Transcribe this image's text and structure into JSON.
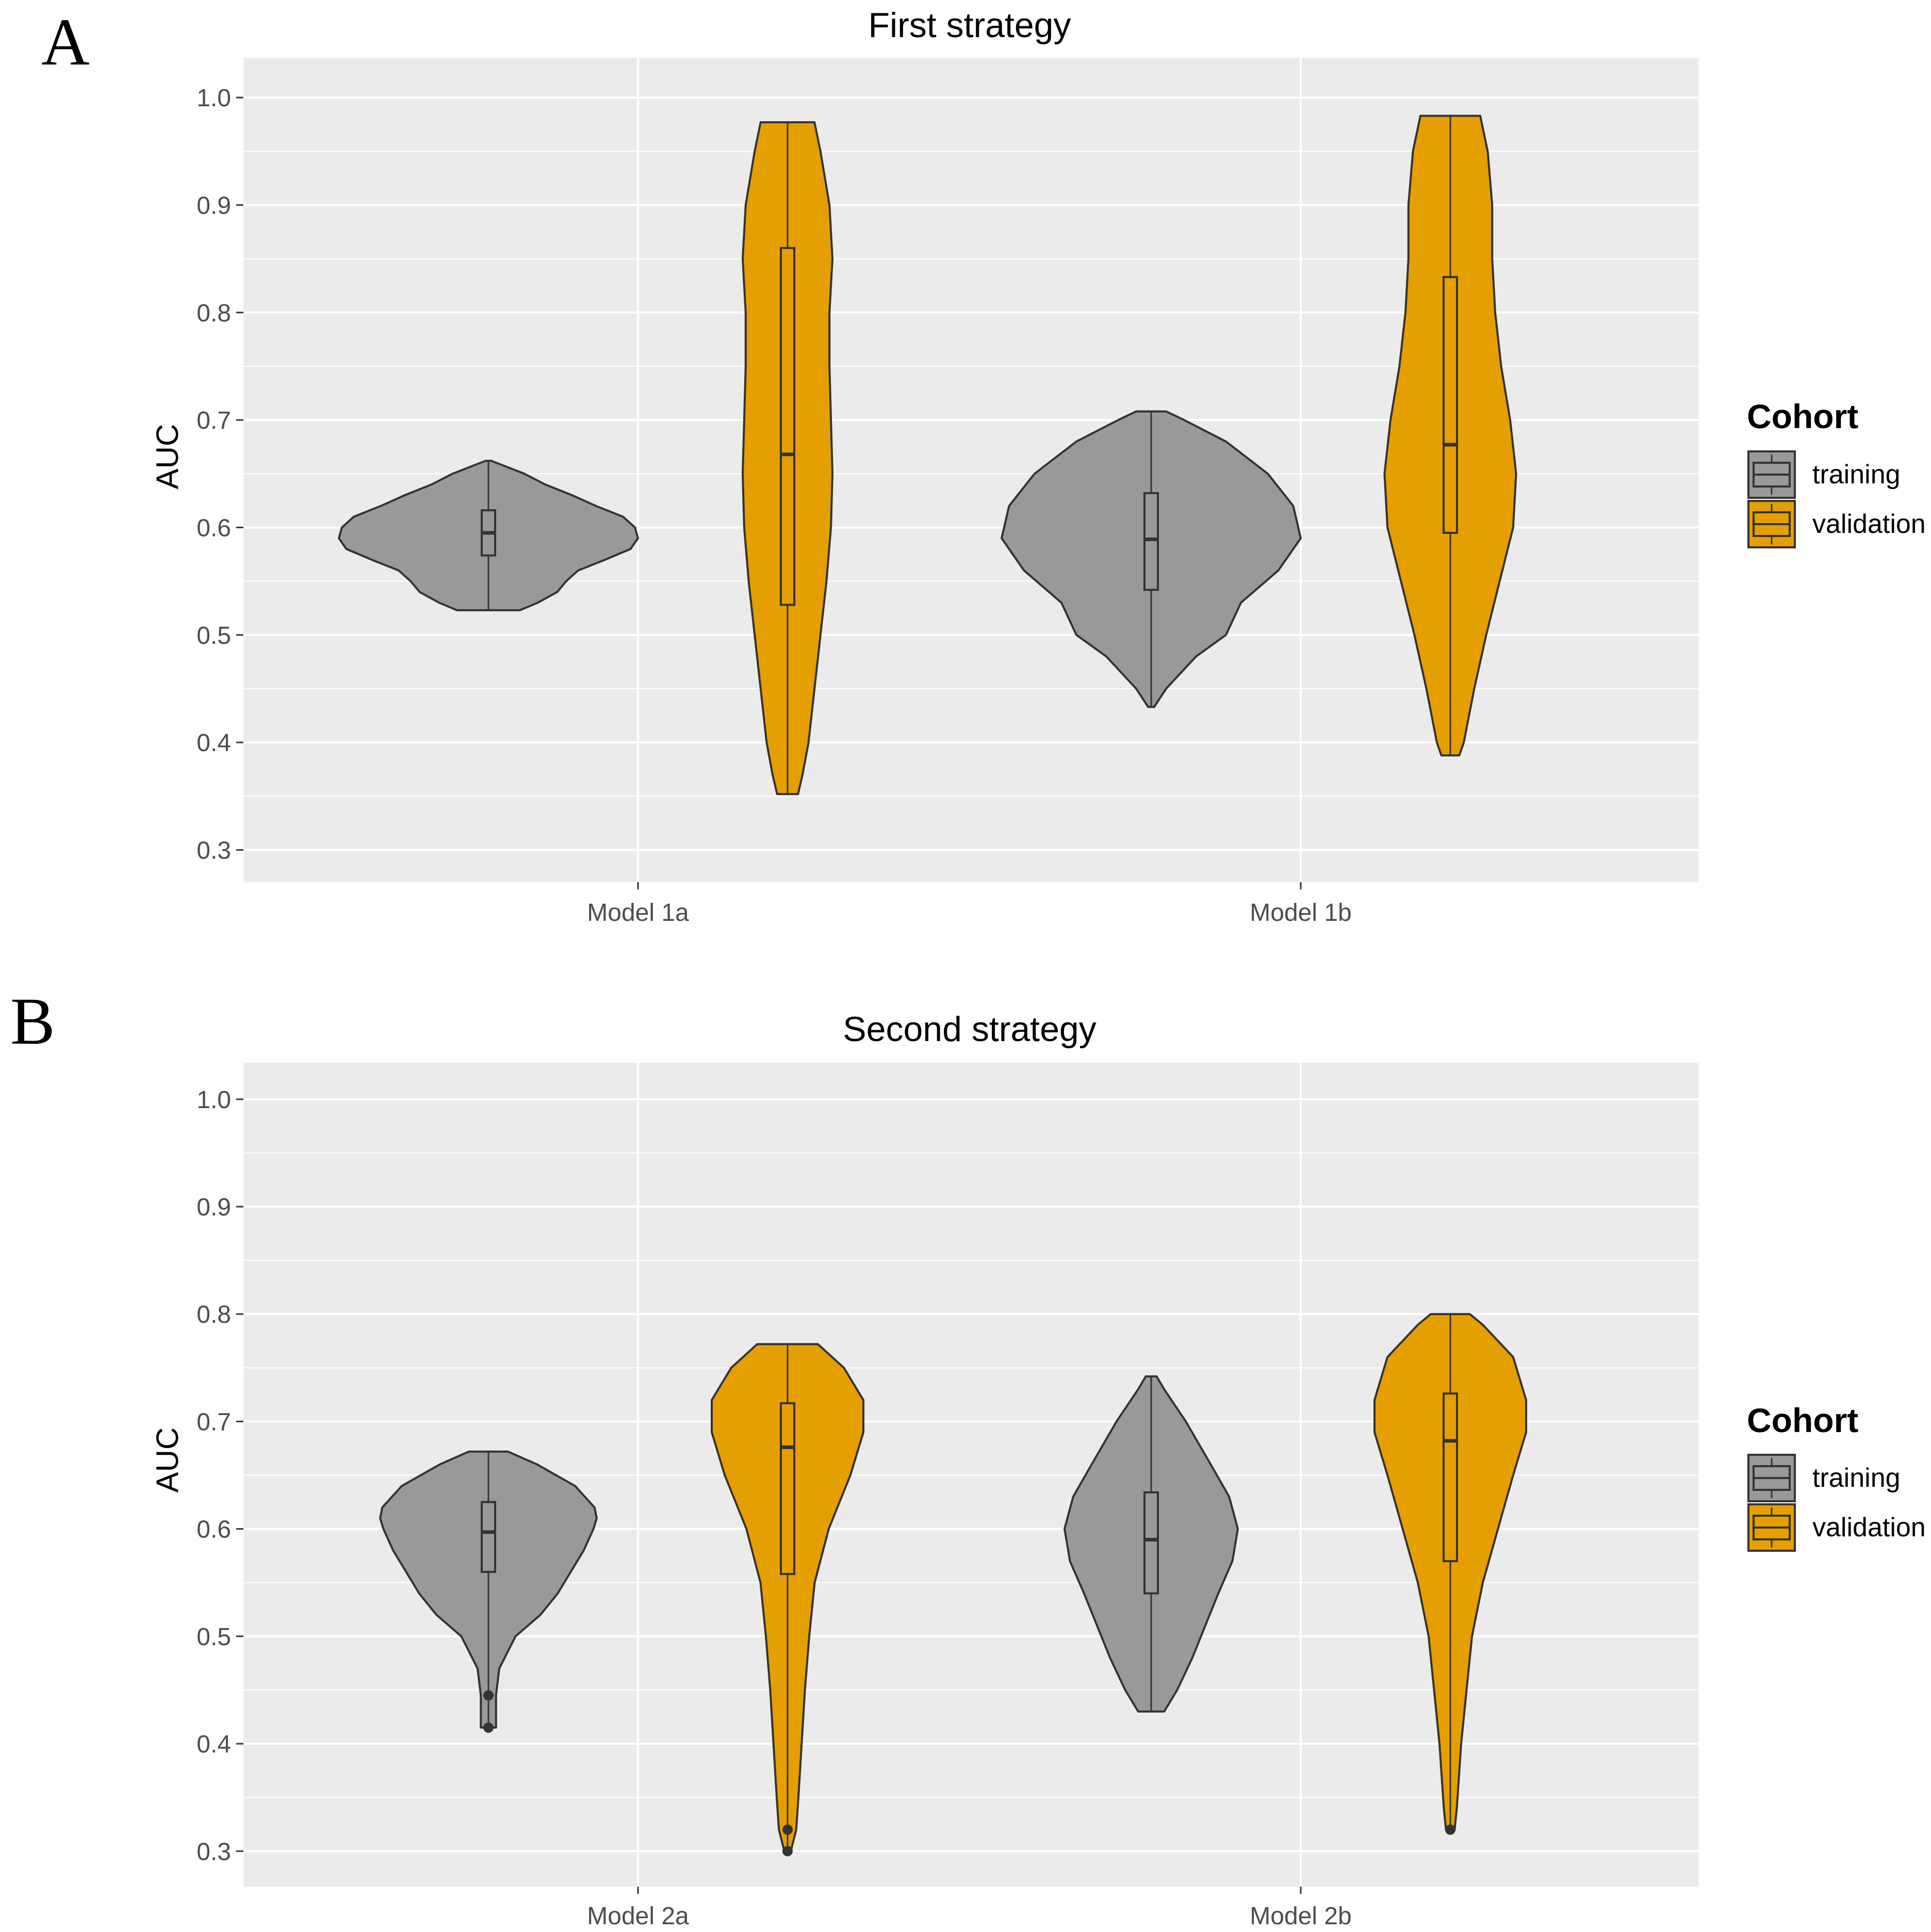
{
  "colors": {
    "training": "#999999",
    "validation": "#E69F00",
    "panel_bg": "#EBEBEB",
    "grid": "#FFFFFF",
    "outline": "#333333"
  },
  "chart_data": [
    {
      "panel_letter": "A",
      "type": "violin",
      "title": "First strategy",
      "ylabel": "AUC",
      "xlabel": "",
      "ylim": [
        0.27,
        1.037
      ],
      "yticks": [
        "0.3",
        "0.4",
        "0.5",
        "0.6",
        "0.7",
        "0.8",
        "0.9",
        "1.0"
      ],
      "categories": [
        "Model 1a",
        "Model 1b"
      ],
      "legend": {
        "title": "Cohort",
        "position": "right",
        "entries": [
          "training",
          "validation"
        ]
      },
      "series": [
        {
          "name": "training",
          "category": "Model 1a",
          "min": 0.523,
          "max": 0.662,
          "q1": 0.574,
          "median": 0.595,
          "q3": 0.616,
          "density": [
            [
              0.523,
              0.21
            ],
            [
              0.53,
              0.33
            ],
            [
              0.54,
              0.46
            ],
            [
              0.55,
              0.52
            ],
            [
              0.56,
              0.6
            ],
            [
              0.57,
              0.78
            ],
            [
              0.58,
              0.95
            ],
            [
              0.59,
              1.0
            ],
            [
              0.6,
              0.98
            ],
            [
              0.61,
              0.9
            ],
            [
              0.62,
              0.72
            ],
            [
              0.63,
              0.56
            ],
            [
              0.64,
              0.38
            ],
            [
              0.65,
              0.24
            ],
            [
              0.662,
              0.02
            ]
          ],
          "outliers": []
        },
        {
          "name": "validation",
          "category": "Model 1a",
          "min": 0.352,
          "max": 0.977,
          "q1": 0.528,
          "median": 0.668,
          "q3": 0.86,
          "density": [
            [
              0.352,
              0.07
            ],
            [
              0.37,
              0.1
            ],
            [
              0.4,
              0.14
            ],
            [
              0.45,
              0.18
            ],
            [
              0.5,
              0.22
            ],
            [
              0.55,
              0.26
            ],
            [
              0.6,
              0.29
            ],
            [
              0.65,
              0.3
            ],
            [
              0.7,
              0.29
            ],
            [
              0.75,
              0.28
            ],
            [
              0.8,
              0.28
            ],
            [
              0.85,
              0.3
            ],
            [
              0.9,
              0.28
            ],
            [
              0.95,
              0.22
            ],
            [
              0.977,
              0.18
            ]
          ],
          "outliers": []
        },
        {
          "name": "training",
          "category": "Model 1b",
          "min": 0.433,
          "max": 0.708,
          "q1": 0.542,
          "median": 0.589,
          "q3": 0.632,
          "density": [
            [
              0.433,
              0.02
            ],
            [
              0.45,
              0.1
            ],
            [
              0.48,
              0.3
            ],
            [
              0.5,
              0.5
            ],
            [
              0.53,
              0.6
            ],
            [
              0.56,
              0.85
            ],
            [
              0.59,
              1.0
            ],
            [
              0.62,
              0.95
            ],
            [
              0.65,
              0.78
            ],
            [
              0.68,
              0.5
            ],
            [
              0.7,
              0.22
            ],
            [
              0.708,
              0.1
            ]
          ],
          "outliers": []
        },
        {
          "name": "validation",
          "category": "Model 1b",
          "min": 0.388,
          "max": 0.983,
          "q1": 0.595,
          "median": 0.677,
          "q3": 0.833,
          "density": [
            [
              0.388,
              0.06
            ],
            [
              0.4,
              0.09
            ],
            [
              0.45,
              0.16
            ],
            [
              0.5,
              0.24
            ],
            [
              0.55,
              0.33
            ],
            [
              0.6,
              0.42
            ],
            [
              0.65,
              0.44
            ],
            [
              0.7,
              0.4
            ],
            [
              0.75,
              0.34
            ],
            [
              0.8,
              0.3
            ],
            [
              0.85,
              0.28
            ],
            [
              0.9,
              0.28
            ],
            [
              0.95,
              0.25
            ],
            [
              0.983,
              0.2
            ]
          ],
          "outliers": []
        }
      ]
    },
    {
      "panel_letter": "B",
      "type": "violin",
      "title": "Second strategy",
      "ylabel": "AUC",
      "xlabel": "",
      "ylim": [
        0.267,
        1.034
      ],
      "yticks": [
        "0.3",
        "0.4",
        "0.5",
        "0.6",
        "0.7",
        "0.8",
        "0.9",
        "1.0"
      ],
      "categories": [
        "Model 2a",
        "Model 2b"
      ],
      "legend": {
        "title": "Cohort",
        "position": "right",
        "entries": [
          "training",
          "validation"
        ]
      },
      "series": [
        {
          "name": "training",
          "category": "Model 2a",
          "min": 0.415,
          "max": 0.672,
          "q1": 0.56,
          "median": 0.597,
          "q3": 0.625,
          "density": [
            [
              0.415,
              0.07
            ],
            [
              0.43,
              0.07
            ],
            [
              0.445,
              0.07
            ],
            [
              0.47,
              0.1
            ],
            [
              0.5,
              0.25
            ],
            [
              0.52,
              0.48
            ],
            [
              0.54,
              0.64
            ],
            [
              0.56,
              0.76
            ],
            [
              0.58,
              0.88
            ],
            [
              0.6,
              0.97
            ],
            [
              0.61,
              1.0
            ],
            [
              0.62,
              0.98
            ],
            [
              0.64,
              0.8
            ],
            [
              0.66,
              0.45
            ],
            [
              0.672,
              0.18
            ]
          ],
          "outliers": [
            0.415,
            0.445
          ]
        },
        {
          "name": "validation",
          "category": "Model 2a",
          "min": 0.3,
          "max": 0.772,
          "q1": 0.558,
          "median": 0.676,
          "q3": 0.717,
          "density": [
            [
              0.3,
              0.03
            ],
            [
              0.32,
              0.08
            ],
            [
              0.35,
              0.1
            ],
            [
              0.4,
              0.13
            ],
            [
              0.45,
              0.16
            ],
            [
              0.5,
              0.2
            ],
            [
              0.55,
              0.25
            ],
            [
              0.6,
              0.38
            ],
            [
              0.65,
              0.58
            ],
            [
              0.69,
              0.7
            ],
            [
              0.72,
              0.7
            ],
            [
              0.75,
              0.52
            ],
            [
              0.772,
              0.28
            ]
          ],
          "outliers": [
            0.3,
            0.32
          ]
        },
        {
          "name": "training",
          "category": "Model 2b",
          "min": 0.43,
          "max": 0.742,
          "q1": 0.54,
          "median": 0.59,
          "q3": 0.634,
          "density": [
            [
              0.43,
              0.12
            ],
            [
              0.45,
              0.24
            ],
            [
              0.48,
              0.38
            ],
            [
              0.51,
              0.5
            ],
            [
              0.54,
              0.62
            ],
            [
              0.57,
              0.75
            ],
            [
              0.6,
              0.8
            ],
            [
              0.63,
              0.72
            ],
            [
              0.66,
              0.55
            ],
            [
              0.7,
              0.32
            ],
            [
              0.73,
              0.12
            ],
            [
              0.742,
              0.05
            ]
          ],
          "outliers": []
        },
        {
          "name": "validation",
          "category": "Model 2b",
          "min": 0.32,
          "max": 0.8,
          "q1": 0.57,
          "median": 0.682,
          "q3": 0.726,
          "density": [
            [
              0.32,
              0.04
            ],
            [
              0.34,
              0.06
            ],
            [
              0.4,
              0.1
            ],
            [
              0.45,
              0.15
            ],
            [
              0.5,
              0.2
            ],
            [
              0.55,
              0.3
            ],
            [
              0.6,
              0.44
            ],
            [
              0.65,
              0.58
            ],
            [
              0.69,
              0.7
            ],
            [
              0.72,
              0.7
            ],
            [
              0.76,
              0.58
            ],
            [
              0.79,
              0.3
            ],
            [
              0.8,
              0.18
            ]
          ],
          "outliers": [
            0.32
          ]
        }
      ]
    }
  ]
}
